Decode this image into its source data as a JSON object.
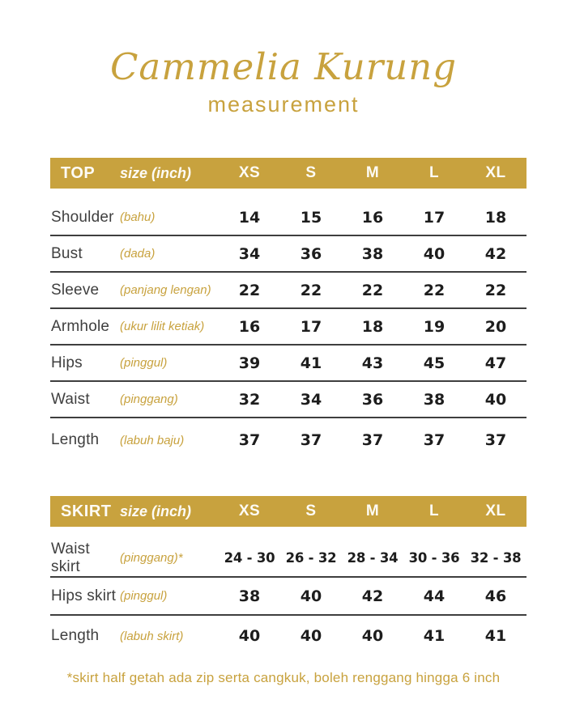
{
  "header": {
    "title": "Cammelia Kurung",
    "subtitle": "measurement"
  },
  "colors": {
    "accent_gold": "#C8A23E",
    "bar_text": "#FDFBF5",
    "label_gray": "#3F3F3F",
    "number_black": "#1D1D1D",
    "line_gray": "#3E3E3E"
  },
  "tables": [
    {
      "name": "TOP",
      "size_label": "size (inch)",
      "sizes": [
        "XS",
        "S",
        "M",
        "L",
        "XL"
      ],
      "rows": [
        {
          "label": "Shoulder",
          "translation": "(bahu)",
          "values": [
            "14",
            "15",
            "16",
            "17",
            "18"
          ]
        },
        {
          "label": "Bust",
          "translation": "(dada)",
          "values": [
            "34",
            "36",
            "38",
            "40",
            "42"
          ]
        },
        {
          "label": "Sleeve",
          "translation": "(panjang lengan)",
          "values": [
            "22",
            "22",
            "22",
            "22",
            "22"
          ]
        },
        {
          "label": "Armhole",
          "translation": "(ukur lilit ketiak)",
          "values": [
            "16",
            "17",
            "18",
            "19",
            "20"
          ]
        },
        {
          "label": "Hips",
          "translation": "(pinggul)",
          "values": [
            "39",
            "41",
            "43",
            "45",
            "47"
          ]
        },
        {
          "label": "Waist",
          "translation": "(pinggang)",
          "values": [
            "32",
            "34",
            "36",
            "38",
            "40"
          ]
        },
        {
          "label": "Length",
          "translation": "(labuh baju)",
          "values": [
            "37",
            "37",
            "37",
            "37",
            "37"
          ]
        }
      ]
    },
    {
      "name": "SKIRT",
      "size_label": "size (inch)",
      "sizes": [
        "XS",
        "S",
        "M",
        "L",
        "XL"
      ],
      "rows": [
        {
          "label": "Waist skirt",
          "translation": "(pinggang)*",
          "values": [
            "24 - 30",
            "26 - 32",
            "28 - 34",
            "30 - 36",
            "32 - 38"
          ]
        },
        {
          "label": "Hips skirt",
          "translation": "(pinggul)",
          "values": [
            "38",
            "40",
            "42",
            "44",
            "46"
          ]
        },
        {
          "label": "Length",
          "translation": "(labuh skirt)",
          "values": [
            "40",
            "40",
            "40",
            "41",
            "41"
          ]
        }
      ]
    }
  ],
  "footnote": "*skirt half getah ada zip serta cangkuk, boleh renggang hingga 6 inch"
}
